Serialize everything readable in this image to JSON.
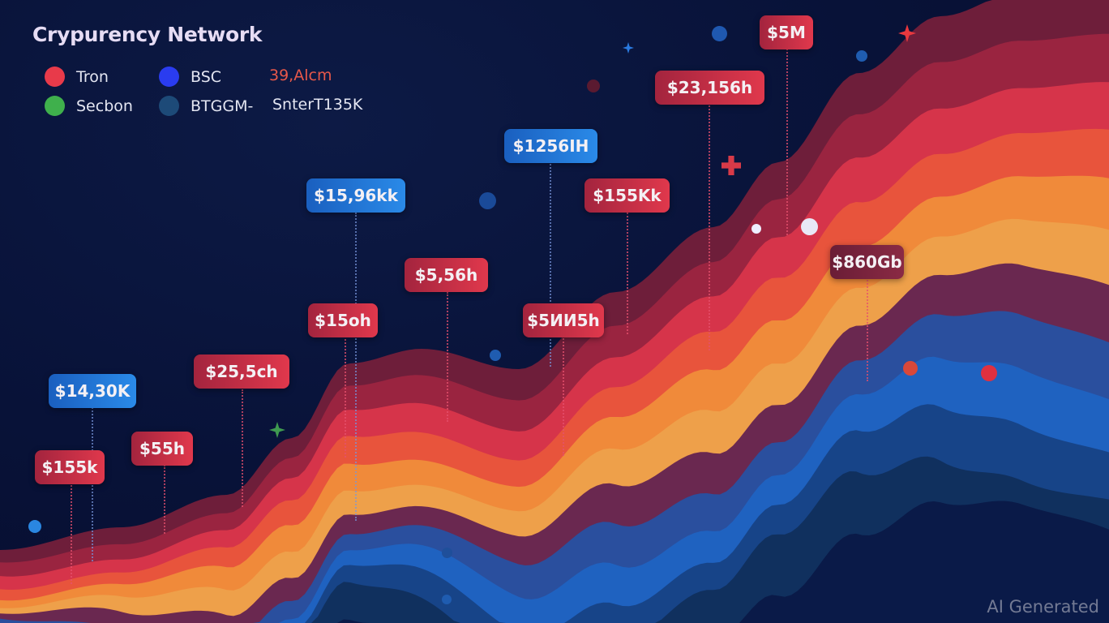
{
  "title": "Crypurency Network",
  "legend": [
    {
      "label": "Tron",
      "color": "#e83a4a"
    },
    {
      "label": "BSC",
      "color": "#2a3cf0"
    },
    {
      "label": "39,Alcm",
      "color": "#e8584a"
    },
    {
      "label": "Secbon",
      "color": "#3fb04c"
    },
    {
      "label": "BTGGM-",
      "color": "#1d4a78"
    },
    {
      "label": "SnterT135K",
      "color": ""
    }
  ],
  "chart_data": {
    "type": "area",
    "title": "Crypurency Network",
    "series_colors": [
      "#6e1e3a",
      "#9a2440",
      "#d6344a",
      "#e8543c",
      "#f08a3a",
      "#eea04a",
      "#6a2850",
      "#2a4f9e",
      "#1f62c0",
      "#174488",
      "#10305e"
    ],
    "annotations": [
      {
        "text": "$5M",
        "style": "red"
      },
      {
        "text": "$23,156h",
        "style": "red"
      },
      {
        "text": "$1256IH",
        "style": "blue"
      },
      {
        "text": "$155Kk",
        "style": "red"
      },
      {
        "text": "$15,96kk",
        "style": "blue"
      },
      {
        "text": "$5,56h",
        "style": "red"
      },
      {
        "text": "$15oh",
        "style": "red"
      },
      {
        "text": "$5ИИ5h",
        "style": "red"
      },
      {
        "text": "$860Gb",
        "style": "maroon"
      },
      {
        "text": "$25,5ch",
        "style": "red"
      },
      {
        "text": "$14,30K",
        "style": "blue"
      },
      {
        "text": "$55h",
        "style": "red"
      },
      {
        "text": "$155k",
        "style": "red"
      }
    ]
  },
  "watermark": "AI Generated"
}
